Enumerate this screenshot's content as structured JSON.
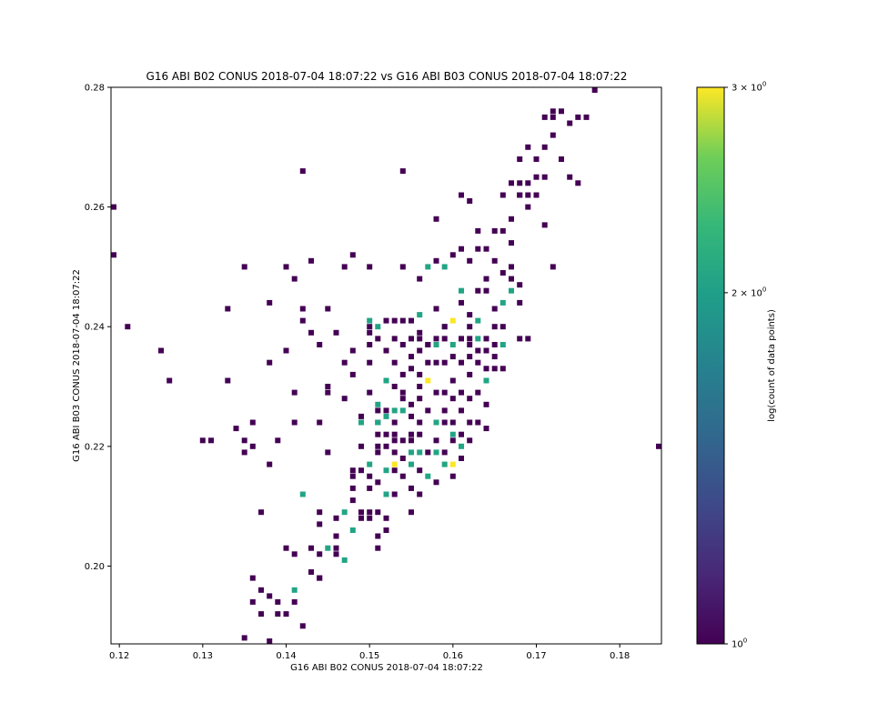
{
  "chart_data": {
    "type": "heatmap",
    "title": "G16 ABI B02 CONUS 2018-07-04 18:07:22 vs G16 ABI B03 CONUS 2018-07-04 18:07:22",
    "xlabel": "G16 ABI B02 CONUS 2018-07-04 18:07:22",
    "ylabel": "G16 ABI B03 CONUS 2018-07-04 18:07:22",
    "xlim": [
      0.119,
      0.185
    ],
    "ylim": [
      0.187,
      0.28
    ],
    "xticks": [
      0.12,
      0.13,
      0.14,
      0.15,
      0.16,
      0.17,
      0.18
    ],
    "yticks": [
      0.2,
      0.22,
      0.24,
      0.26,
      0.28
    ],
    "xtick_labels": [
      "0.12",
      "0.13",
      "0.14",
      "0.15",
      "0.16",
      "0.17",
      "0.18"
    ],
    "ytick_labels": [
      "0.20",
      "0.22",
      "0.24",
      "0.26",
      "0.28"
    ],
    "colorbar": {
      "label": "log(count of data points)",
      "colormap": "viridis",
      "scale": "log",
      "min": 1,
      "max": 3,
      "tick_values": [
        1,
        2,
        3
      ],
      "tick_bases": [
        "10",
        "2 × 10",
        "3 × 10"
      ],
      "tick_exponents": [
        "0",
        "0",
        "0"
      ]
    },
    "colors": [
      "#440154",
      "#21a585",
      "#fde725"
    ],
    "grid": false,
    "points": [
      [
        0.119,
        0.26,
        1
      ],
      [
        0.119,
        0.252,
        1
      ],
      [
        0.121,
        0.24,
        1
      ],
      [
        0.125,
        0.236,
        1
      ],
      [
        0.126,
        0.231,
        1
      ],
      [
        0.13,
        0.221,
        1
      ],
      [
        0.131,
        0.221,
        1
      ],
      [
        0.133,
        0.231,
        1
      ],
      [
        0.133,
        0.243,
        1
      ],
      [
        0.134,
        0.223,
        1
      ],
      [
        0.135,
        0.221,
        1
      ],
      [
        0.135,
        0.219,
        1
      ],
      [
        0.135,
        0.25,
        1
      ],
      [
        0.135,
        0.188,
        1
      ],
      [
        0.136,
        0.224,
        1
      ],
      [
        0.136,
        0.22,
        1
      ],
      [
        0.136,
        0.198,
        1
      ],
      [
        0.136,
        0.194,
        1
      ],
      [
        0.137,
        0.209,
        1
      ],
      [
        0.137,
        0.196,
        1
      ],
      [
        0.137,
        0.192,
        1
      ],
      [
        0.138,
        0.187,
        1
      ],
      [
        0.138,
        0.217,
        1
      ],
      [
        0.138,
        0.234,
        1
      ],
      [
        0.138,
        0.244,
        1
      ],
      [
        0.138,
        0.195,
        1
      ],
      [
        0.139,
        0.221,
        1
      ],
      [
        0.139,
        0.194,
        1
      ],
      [
        0.139,
        0.192,
        1
      ],
      [
        0.14,
        0.236,
        1
      ],
      [
        0.14,
        0.25,
        1
      ],
      [
        0.14,
        0.203,
        1
      ],
      [
        0.14,
        0.192,
        1
      ],
      [
        0.141,
        0.229,
        1
      ],
      [
        0.141,
        0.224,
        1
      ],
      [
        0.141,
        0.248,
        1
      ],
      [
        0.141,
        0.196,
        2
      ],
      [
        0.141,
        0.194,
        1
      ],
      [
        0.141,
        0.202,
        1
      ],
      [
        0.142,
        0.243,
        1
      ],
      [
        0.142,
        0.241,
        1
      ],
      [
        0.142,
        0.19,
        1
      ],
      [
        0.142,
        0.212,
        2
      ],
      [
        0.142,
        0.266,
        1
      ],
      [
        0.143,
        0.251,
        1
      ],
      [
        0.143,
        0.239,
        1
      ],
      [
        0.143,
        0.203,
        1
      ],
      [
        0.143,
        0.199,
        1
      ],
      [
        0.144,
        0.198,
        1
      ],
      [
        0.144,
        0.202,
        1
      ],
      [
        0.144,
        0.209,
        1
      ],
      [
        0.144,
        0.224,
        1
      ],
      [
        0.144,
        0.237,
        1
      ],
      [
        0.144,
        0.198,
        1
      ],
      [
        0.144,
        0.207,
        1
      ],
      [
        0.145,
        0.243,
        1
      ],
      [
        0.145,
        0.23,
        1
      ],
      [
        0.145,
        0.229,
        1
      ],
      [
        0.145,
        0.219,
        1
      ],
      [
        0.145,
        0.203,
        2
      ],
      [
        0.146,
        0.239,
        1
      ],
      [
        0.146,
        0.205,
        1
      ],
      [
        0.146,
        0.208,
        1
      ],
      [
        0.146,
        0.202,
        1
      ],
      [
        0.146,
        0.203,
        1
      ],
      [
        0.147,
        0.25,
        1
      ],
      [
        0.147,
        0.234,
        1
      ],
      [
        0.147,
        0.228,
        1
      ],
      [
        0.147,
        0.209,
        2
      ],
      [
        0.147,
        0.201,
        2
      ],
      [
        0.148,
        0.252,
        1
      ],
      [
        0.148,
        0.236,
        1
      ],
      [
        0.148,
        0.232,
        1
      ],
      [
        0.148,
        0.206,
        2
      ],
      [
        0.148,
        0.215,
        1
      ],
      [
        0.148,
        0.216,
        1
      ],
      [
        0.148,
        0.213,
        1
      ],
      [
        0.148,
        0.211,
        1
      ],
      [
        0.149,
        0.225,
        1
      ],
      [
        0.149,
        0.22,
        1
      ],
      [
        0.149,
        0.216,
        1
      ],
      [
        0.149,
        0.209,
        1
      ],
      [
        0.149,
        0.208,
        1
      ],
      [
        0.149,
        0.224,
        2
      ],
      [
        0.15,
        0.241,
        2
      ],
      [
        0.15,
        0.239,
        1
      ],
      [
        0.15,
        0.234,
        1
      ],
      [
        0.15,
        0.217,
        2
      ],
      [
        0.15,
        0.213,
        1
      ],
      [
        0.15,
        0.209,
        1
      ],
      [
        0.15,
        0.208,
        1
      ],
      [
        0.15,
        0.215,
        1
      ],
      [
        0.15,
        0.229,
        1
      ],
      [
        0.15,
        0.24,
        1
      ],
      [
        0.15,
        0.25,
        1
      ],
      [
        0.15,
        0.237,
        1
      ],
      [
        0.151,
        0.24,
        2
      ],
      [
        0.151,
        0.238,
        1
      ],
      [
        0.151,
        0.226,
        1
      ],
      [
        0.151,
        0.224,
        1
      ],
      [
        0.151,
        0.222,
        1
      ],
      [
        0.151,
        0.22,
        1
      ],
      [
        0.151,
        0.219,
        1
      ],
      [
        0.151,
        0.214,
        1
      ],
      [
        0.151,
        0.227,
        2
      ],
      [
        0.151,
        0.209,
        1
      ],
      [
        0.151,
        0.205,
        1
      ],
      [
        0.151,
        0.203,
        1
      ],
      [
        0.151,
        0.224,
        2
      ],
      [
        0.152,
        0.241,
        1
      ],
      [
        0.152,
        0.236,
        1
      ],
      [
        0.152,
        0.231,
        2
      ],
      [
        0.152,
        0.226,
        1
      ],
      [
        0.152,
        0.222,
        1
      ],
      [
        0.152,
        0.22,
        1
      ],
      [
        0.152,
        0.216,
        2
      ],
      [
        0.152,
        0.212,
        2
      ],
      [
        0.152,
        0.208,
        1
      ],
      [
        0.152,
        0.206,
        1
      ],
      [
        0.152,
        0.225,
        2
      ],
      [
        0.153,
        0.241,
        1
      ],
      [
        0.153,
        0.238,
        1
      ],
      [
        0.153,
        0.234,
        1
      ],
      [
        0.153,
        0.23,
        1
      ],
      [
        0.153,
        0.226,
        2
      ],
      [
        0.153,
        0.224,
        1
      ],
      [
        0.153,
        0.222,
        1
      ],
      [
        0.153,
        0.217,
        3
      ],
      [
        0.153,
        0.216,
        1
      ],
      [
        0.153,
        0.212,
        1
      ],
      [
        0.153,
        0.221,
        1
      ],
      [
        0.153,
        0.219,
        1
      ],
      [
        0.154,
        0.25,
        1
      ],
      [
        0.154,
        0.241,
        1
      ],
      [
        0.154,
        0.237,
        1
      ],
      [
        0.154,
        0.232,
        1
      ],
      [
        0.154,
        0.229,
        1
      ],
      [
        0.154,
        0.226,
        2
      ],
      [
        0.154,
        0.221,
        1
      ],
      [
        0.154,
        0.218,
        1
      ],
      [
        0.154,
        0.215,
        1
      ],
      [
        0.154,
        0.266,
        1
      ],
      [
        0.154,
        0.228,
        1
      ],
      [
        0.155,
        0.241,
        1
      ],
      [
        0.155,
        0.238,
        1
      ],
      [
        0.155,
        0.235,
        1
      ],
      [
        0.155,
        0.233,
        1
      ],
      [
        0.155,
        0.225,
        1
      ],
      [
        0.155,
        0.221,
        1
      ],
      [
        0.155,
        0.219,
        2
      ],
      [
        0.155,
        0.217,
        2
      ],
      [
        0.155,
        0.213,
        1
      ],
      [
        0.155,
        0.209,
        1
      ],
      [
        0.155,
        0.227,
        1
      ],
      [
        0.155,
        0.222,
        1
      ],
      [
        0.156,
        0.248,
        1
      ],
      [
        0.156,
        0.242,
        2
      ],
      [
        0.156,
        0.238,
        1
      ],
      [
        0.156,
        0.236,
        1
      ],
      [
        0.156,
        0.232,
        1
      ],
      [
        0.156,
        0.23,
        1
      ],
      [
        0.156,
        0.228,
        1
      ],
      [
        0.156,
        0.224,
        1
      ],
      [
        0.156,
        0.222,
        1
      ],
      [
        0.156,
        0.219,
        2
      ],
      [
        0.156,
        0.216,
        1
      ],
      [
        0.156,
        0.212,
        1
      ],
      [
        0.156,
        0.239,
        1
      ],
      [
        0.157,
        0.25,
        2
      ],
      [
        0.157,
        0.237,
        1
      ],
      [
        0.157,
        0.234,
        1
      ],
      [
        0.157,
        0.231,
        3
      ],
      [
        0.157,
        0.226,
        1
      ],
      [
        0.157,
        0.219,
        1
      ],
      [
        0.157,
        0.215,
        2
      ],
      [
        0.157,
        0.237,
        1
      ],
      [
        0.158,
        0.251,
        1
      ],
      [
        0.158,
        0.243,
        1
      ],
      [
        0.158,
        0.238,
        1
      ],
      [
        0.158,
        0.237,
        2
      ],
      [
        0.158,
        0.234,
        1
      ],
      [
        0.158,
        0.229,
        1
      ],
      [
        0.158,
        0.224,
        2
      ],
      [
        0.158,
        0.219,
        2
      ],
      [
        0.158,
        0.214,
        1
      ],
      [
        0.158,
        0.258,
        1
      ],
      [
        0.158,
        0.221,
        1
      ],
      [
        0.159,
        0.25,
        2
      ],
      [
        0.159,
        0.24,
        2
      ],
      [
        0.159,
        0.238,
        1
      ],
      [
        0.159,
        0.234,
        1
      ],
      [
        0.159,
        0.229,
        1
      ],
      [
        0.159,
        0.226,
        1
      ],
      [
        0.159,
        0.224,
        1
      ],
      [
        0.159,
        0.219,
        1
      ],
      [
        0.159,
        0.217,
        2
      ],
      [
        0.159,
        0.24,
        1
      ],
      [
        0.16,
        0.252,
        1
      ],
      [
        0.16,
        0.241,
        3
      ],
      [
        0.16,
        0.237,
        2
      ],
      [
        0.16,
        0.235,
        1
      ],
      [
        0.16,
        0.231,
        1
      ],
      [
        0.16,
        0.228,
        1
      ],
      [
        0.16,
        0.224,
        1
      ],
      [
        0.16,
        0.221,
        1
      ],
      [
        0.16,
        0.217,
        3
      ],
      [
        0.16,
        0.215,
        1
      ],
      [
        0.16,
        0.222,
        2
      ],
      [
        0.161,
        0.262,
        1
      ],
      [
        0.161,
        0.253,
        1
      ],
      [
        0.161,
        0.244,
        1
      ],
      [
        0.161,
        0.234,
        1
      ],
      [
        0.161,
        0.229,
        1
      ],
      [
        0.161,
        0.226,
        1
      ],
      [
        0.161,
        0.222,
        1
      ],
      [
        0.161,
        0.22,
        2
      ],
      [
        0.161,
        0.218,
        1
      ],
      [
        0.161,
        0.246,
        2
      ],
      [
        0.161,
        0.238,
        1
      ],
      [
        0.162,
        0.261,
        1
      ],
      [
        0.162,
        0.251,
        1
      ],
      [
        0.162,
        0.242,
        1
      ],
      [
        0.162,
        0.24,
        1
      ],
      [
        0.162,
        0.238,
        1
      ],
      [
        0.162,
        0.237,
        1
      ],
      [
        0.162,
        0.235,
        1
      ],
      [
        0.162,
        0.232,
        1
      ],
      [
        0.162,
        0.228,
        1
      ],
      [
        0.162,
        0.224,
        1
      ],
      [
        0.162,
        0.221,
        1
      ],
      [
        0.163,
        0.256,
        1
      ],
      [
        0.163,
        0.246,
        1
      ],
      [
        0.163,
        0.241,
        2
      ],
      [
        0.163,
        0.238,
        2
      ],
      [
        0.163,
        0.236,
        1
      ],
      [
        0.163,
        0.234,
        1
      ],
      [
        0.163,
        0.229,
        1
      ],
      [
        0.163,
        0.224,
        1
      ],
      [
        0.163,
        0.253,
        1
      ],
      [
        0.164,
        0.253,
        1
      ],
      [
        0.164,
        0.248,
        1
      ],
      [
        0.164,
        0.246,
        1
      ],
      [
        0.164,
        0.238,
        1
      ],
      [
        0.164,
        0.236,
        1
      ],
      [
        0.164,
        0.233,
        1
      ],
      [
        0.164,
        0.231,
        2
      ],
      [
        0.164,
        0.227,
        1
      ],
      [
        0.164,
        0.223,
        1
      ],
      [
        0.165,
        0.256,
        1
      ],
      [
        0.165,
        0.251,
        1
      ],
      [
        0.165,
        0.243,
        1
      ],
      [
        0.165,
        0.24,
        1
      ],
      [
        0.165,
        0.237,
        1
      ],
      [
        0.165,
        0.235,
        1
      ],
      [
        0.165,
        0.233,
        1
      ],
      [
        0.166,
        0.262,
        1
      ],
      [
        0.166,
        0.256,
        1
      ],
      [
        0.166,
        0.249,
        1
      ],
      [
        0.166,
        0.244,
        2
      ],
      [
        0.166,
        0.24,
        1
      ],
      [
        0.166,
        0.237,
        2
      ],
      [
        0.166,
        0.233,
        1
      ],
      [
        0.167,
        0.264,
        1
      ],
      [
        0.167,
        0.258,
        1
      ],
      [
        0.167,
        0.254,
        1
      ],
      [
        0.167,
        0.25,
        1
      ],
      [
        0.167,
        0.246,
        2
      ],
      [
        0.167,
        0.248,
        1
      ],
      [
        0.168,
        0.268,
        1
      ],
      [
        0.168,
        0.264,
        1
      ],
      [
        0.168,
        0.262,
        1
      ],
      [
        0.168,
        0.262,
        1
      ],
      [
        0.168,
        0.247,
        1
      ],
      [
        0.168,
        0.244,
        1
      ],
      [
        0.168,
        0.238,
        1
      ],
      [
        0.169,
        0.27,
        1
      ],
      [
        0.169,
        0.264,
        1
      ],
      [
        0.169,
        0.262,
        1
      ],
      [
        0.169,
        0.26,
        1
      ],
      [
        0.169,
        0.238,
        1
      ],
      [
        0.17,
        0.268,
        1
      ],
      [
        0.17,
        0.265,
        1
      ],
      [
        0.17,
        0.262,
        1
      ],
      [
        0.171,
        0.275,
        1
      ],
      [
        0.171,
        0.27,
        1
      ],
      [
        0.171,
        0.265,
        1
      ],
      [
        0.171,
        0.257,
        1
      ],
      [
        0.172,
        0.272,
        1
      ],
      [
        0.172,
        0.275,
        1
      ],
      [
        0.172,
        0.276,
        1
      ],
      [
        0.172,
        0.25,
        1
      ],
      [
        0.173,
        0.276,
        1
      ],
      [
        0.173,
        0.268,
        1
      ],
      [
        0.174,
        0.274,
        1
      ],
      [
        0.174,
        0.265,
        1
      ],
      [
        0.175,
        0.275,
        1
      ],
      [
        0.175,
        0.264,
        1
      ],
      [
        0.176,
        0.275,
        1
      ],
      [
        0.177,
        0.28,
        1
      ],
      [
        0.185,
        0.22,
        1
      ]
    ]
  }
}
